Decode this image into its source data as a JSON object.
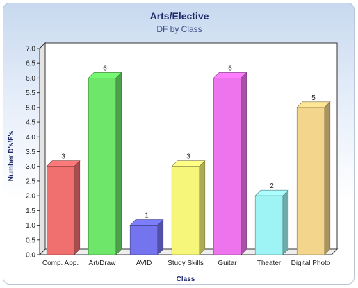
{
  "chart_data": {
    "type": "bar",
    "title": "Arts/Elective",
    "subtitle": "DF by Class",
    "xlabel": "Class",
    "ylabel": "Number D's/F's",
    "ylim": [
      0,
      7
    ],
    "ytick_step": 0.5,
    "grid": false,
    "categories": [
      "Comp. App.",
      "Art/Draw",
      "AVID",
      "Study Skills",
      "Guitar",
      "Theater",
      "Digital Photo"
    ],
    "values": [
      3,
      6,
      1,
      3,
      6,
      2,
      5
    ],
    "colors": [
      "#f07070",
      "#6ee66a",
      "#7474ee",
      "#f6f67a",
      "#ee74ee",
      "#9ef4f4",
      "#f3d58c"
    ]
  }
}
